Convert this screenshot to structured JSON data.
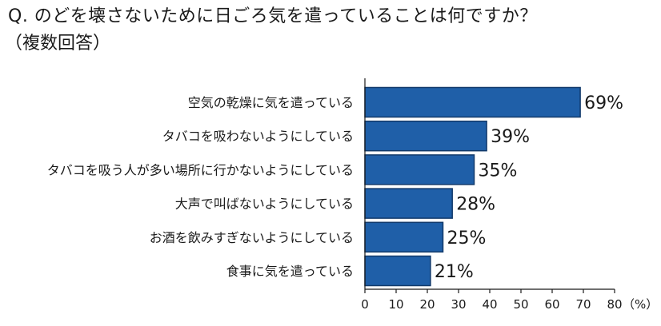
{
  "header": {
    "title": "Q. のどを壊さないために日ごろ気を遣っていることは何ですか？",
    "subtitle": "（複数回答）"
  },
  "chart_data": {
    "type": "bar",
    "orientation": "horizontal",
    "categories": [
      "空気の乾燥に気を遣っている",
      "タバコを吸わないようにしている",
      "タバコを吸う人が多い場所に行かないようにしている",
      "大声で叫ばないようにしている",
      "お酒を飲みすぎないようにしている",
      "食事に気を遣っている"
    ],
    "values": [
      69,
      39,
      35,
      28,
      25,
      21
    ],
    "value_labels": [
      "69%",
      "39%",
      "35%",
      "28%",
      "25%",
      "21%"
    ],
    "xlim": [
      0,
      80
    ],
    "xticks": [
      "0",
      "10",
      "20",
      "30",
      "40",
      "50",
      "60",
      "70",
      "80"
    ],
    "unit_label": "（%）",
    "grid": false,
    "bar_color": "#1f5fa8",
    "bar_edge_color": "#123a6b"
  }
}
